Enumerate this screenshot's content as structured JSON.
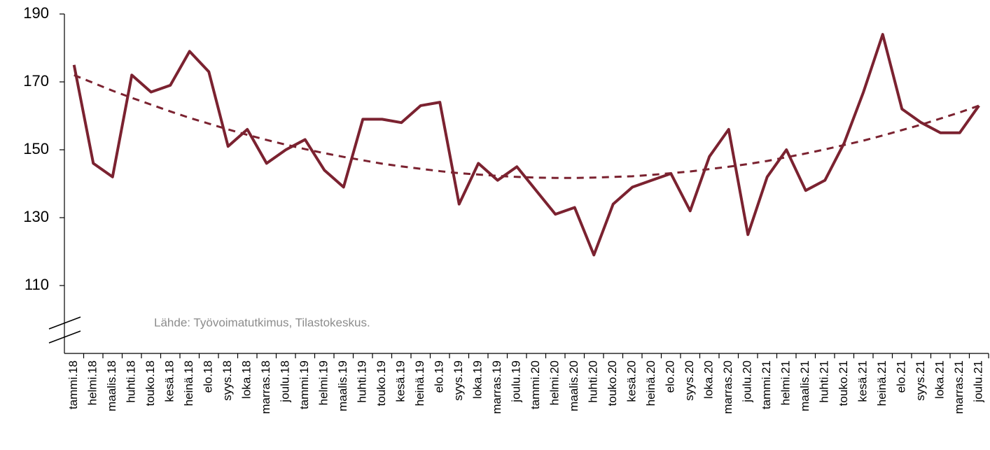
{
  "chart_data": {
    "type": "line",
    "categories": [
      "tammi.18",
      "helmi.18",
      "maalis.18",
      "huhti.18",
      "touko.18",
      "kesä.18",
      "heinä.18",
      "elo.18",
      "syys.18",
      "loka.18",
      "marras.18",
      "joulu.18",
      "tammi.19",
      "helmi.19",
      "maalis.19",
      "huhti.19",
      "touko.19",
      "kesä.19",
      "heinä.19",
      "elo.19",
      "syys.19",
      "loka.19",
      "marras.19",
      "joulu.19",
      "tammi.20",
      "helmi.20",
      "maalis.20",
      "huhti.20",
      "touko.20",
      "kesä.20",
      "heinä.20",
      "elo.20",
      "syys.20",
      "loka.20",
      "marras.20",
      "joulu.20",
      "tammi.21",
      "helmi.21",
      "maalis.21",
      "huhti.21",
      "touko.21",
      "kesä.21",
      "heinä.21",
      "elo.21",
      "syys.21",
      "loka.21",
      "marras.21",
      "joulu.21"
    ],
    "series": [
      {
        "color": "#7b2230",
        "style": "solid",
        "values": [
          175,
          146,
          142,
          172,
          167,
          169,
          179,
          173,
          151,
          156,
          146,
          150,
          153,
          144,
          139,
          159,
          159,
          158,
          163,
          164,
          134,
          146,
          141,
          145,
          138,
          131,
          133,
          119,
          134,
          139,
          141,
          143,
          132,
          148,
          156,
          125,
          142,
          150,
          138,
          141,
          152,
          167,
          184,
          162,
          158,
          155,
          155,
          163
        ]
      },
      {
        "color": "#7b2230",
        "style": "dashed",
        "values": [
          172.0,
          169.7,
          167.4,
          165.3,
          163.3,
          161.3,
          159.4,
          157.7,
          156.0,
          154.4,
          152.9,
          151.5,
          150.2,
          149.0,
          147.9,
          146.9,
          145.9,
          145.1,
          144.4,
          143.7,
          143.1,
          142.7,
          142.3,
          142.0,
          141.8,
          141.7,
          141.7,
          141.8,
          142.0,
          142.2,
          142.6,
          143.1,
          143.6,
          144.3,
          145.0,
          145.8,
          146.7,
          147.8,
          148.9,
          150.1,
          151.4,
          152.7,
          154.2,
          155.8,
          157.4,
          159.2,
          161.0,
          163.0
        ]
      }
    ],
    "ylim": [
      90,
      190
    ],
    "yticks": [
      110,
      130,
      150,
      170,
      190
    ],
    "grid": false,
    "source": "Lähde: Työvoimatutkimus, Tilastokeskus."
  }
}
